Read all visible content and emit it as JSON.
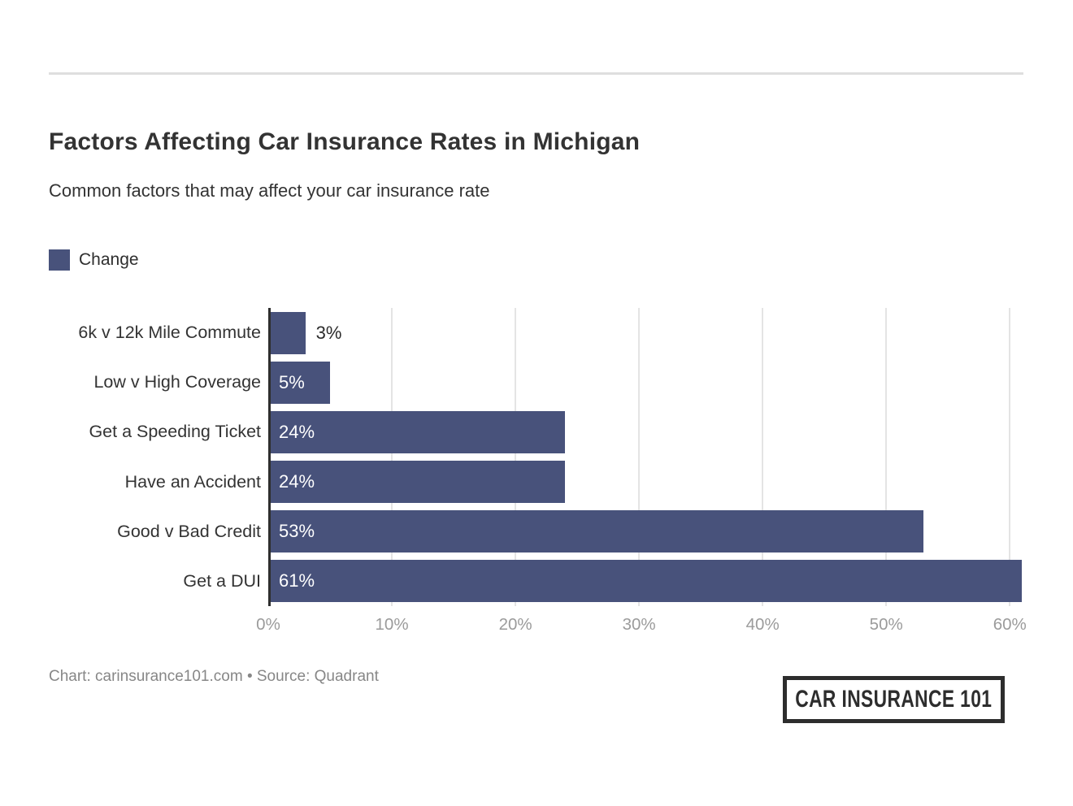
{
  "header": {
    "title": "Factors Affecting Car Insurance Rates in Michigan",
    "subtitle": "Common factors that may affect your car insurance rate"
  },
  "legend": {
    "label": "Change"
  },
  "chart_data": {
    "type": "bar",
    "orientation": "horizontal",
    "title": "Factors Affecting Car Insurance Rates in Michigan",
    "subtitle": "Common factors that may affect your car insurance rate",
    "series_name": "Change",
    "categories": [
      "6k v 12k Mile Commute",
      "Low v High Coverage",
      "Get a Speeding Ticket",
      "Have an Accident",
      "Good v Bad Credit",
      "Get a DUI"
    ],
    "values": [
      3,
      5,
      24,
      24,
      53,
      61
    ],
    "value_labels": [
      "3%",
      "5%",
      "24%",
      "24%",
      "53%",
      "61%"
    ],
    "x_ticks": [
      0,
      10,
      20,
      30,
      40,
      50,
      60
    ],
    "x_tick_labels": [
      "0%",
      "10%",
      "20%",
      "30%",
      "40%",
      "50%",
      "60%"
    ],
    "xlim": [
      0,
      61.3
    ],
    "grid": "vertical-gridlines-on",
    "legend_position": "top-left",
    "inside_label_min_value": 5
  },
  "colors": {
    "bar": "#48527b",
    "axis_line": "#2e2e2e",
    "gridline": "#e4e4e4",
    "tick_label": "#9b9b9b",
    "title_text": "#333333",
    "value_label_inside": "#ffffff",
    "value_label_outside": "#2b2b2b"
  },
  "footer": {
    "credit": "Chart: carinsurance101.com • Source: Quadrant",
    "logo_text": "CAR INSURANCE 101"
  }
}
